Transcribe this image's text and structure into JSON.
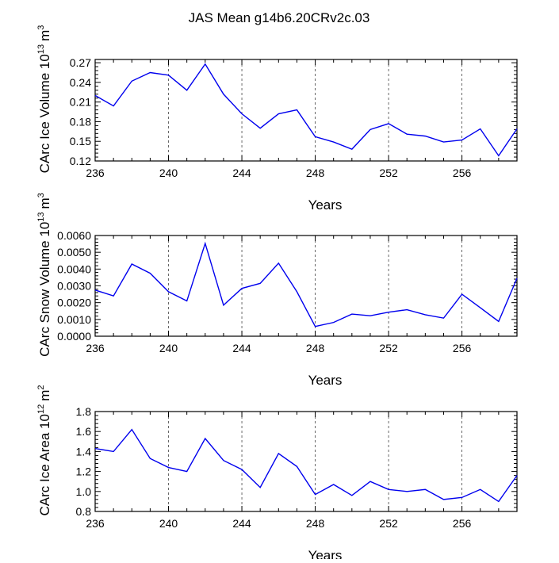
{
  "title": "JAS Mean g14b6.20CRv2c.03",
  "chart_data": [
    {
      "type": "line",
      "name": "ice-volume",
      "ylabel_main": "CArc Ice Volume 10",
      "ylabel_exp": "13",
      "ylabel_unit": "m",
      "ylabel_unit_exp": "3",
      "xlabel": "Years",
      "xlim": [
        236,
        259
      ],
      "ylim": [
        0.12,
        0.275
      ],
      "x_ticks": [
        236,
        240,
        244,
        248,
        252,
        256
      ],
      "y_ticks": [
        "0.12",
        "0.15",
        "0.18",
        "0.21",
        "0.24",
        "0.27"
      ],
      "x": [
        236,
        237,
        238,
        239,
        240,
        241,
        242,
        243,
        244,
        245,
        246,
        247,
        248,
        249,
        250,
        251,
        252,
        253,
        254,
        255,
        256,
        257,
        258,
        259
      ],
      "values": [
        0.22,
        0.204,
        0.242,
        0.255,
        0.251,
        0.228,
        0.268,
        0.222,
        0.192,
        0.17,
        0.192,
        0.198,
        0.157,
        0.149,
        0.138,
        0.168,
        0.177,
        0.161,
        0.158,
        0.149,
        0.152,
        0.169,
        0.128,
        0.169
      ],
      "series_color": "#0000ee"
    },
    {
      "type": "line",
      "name": "snow-volume",
      "ylabel_main": "CArc Snow Volume 10",
      "ylabel_exp": "13",
      "ylabel_unit": "m",
      "ylabel_unit_exp": "3",
      "xlabel": "Years",
      "xlim": [
        236,
        259
      ],
      "ylim": [
        0.0,
        0.006
      ],
      "x_ticks": [
        236,
        240,
        244,
        248,
        252,
        256
      ],
      "y_ticks": [
        "0.0000",
        "0.0010",
        "0.0020",
        "0.0030",
        "0.0040",
        "0.0050",
        "0.0060"
      ],
      "x": [
        236,
        237,
        238,
        239,
        240,
        241,
        242,
        243,
        244,
        245,
        246,
        247,
        248,
        249,
        250,
        251,
        252,
        253,
        254,
        255,
        256,
        257,
        258,
        259
      ],
      "values": [
        0.00275,
        0.0024,
        0.0043,
        0.00375,
        0.00265,
        0.0021,
        0.00553,
        0.00185,
        0.00285,
        0.00315,
        0.00435,
        0.00265,
        0.00058,
        0.00082,
        0.00132,
        0.00122,
        0.00143,
        0.00158,
        0.00128,
        0.00108,
        0.0025,
        0.0017,
        0.00088,
        0.00345
      ],
      "series_color": "#0000ee"
    },
    {
      "type": "line",
      "name": "ice-area",
      "ylabel_main": "CArc Ice Area 10",
      "ylabel_exp": "12",
      "ylabel_unit": "m",
      "ylabel_unit_exp": "2",
      "xlabel": "Years",
      "xlim": [
        236,
        259
      ],
      "ylim": [
        0.8,
        1.8
      ],
      "x_ticks": [
        236,
        240,
        244,
        248,
        252,
        256
      ],
      "y_ticks": [
        "0.8",
        "1.0",
        "1.2",
        "1.4",
        "1.6",
        "1.8"
      ],
      "x": [
        236,
        237,
        238,
        239,
        240,
        241,
        242,
        243,
        244,
        245,
        246,
        247,
        248,
        249,
        250,
        251,
        252,
        253,
        254,
        255,
        256,
        257,
        258,
        259
      ],
      "values": [
        1.43,
        1.4,
        1.62,
        1.33,
        1.24,
        1.2,
        1.53,
        1.31,
        1.22,
        1.04,
        1.38,
        1.25,
        0.97,
        1.07,
        0.96,
        1.1,
        1.02,
        1.0,
        1.02,
        0.92,
        0.94,
        1.02,
        0.9,
        1.16
      ],
      "series_color": "#0000ee"
    }
  ]
}
